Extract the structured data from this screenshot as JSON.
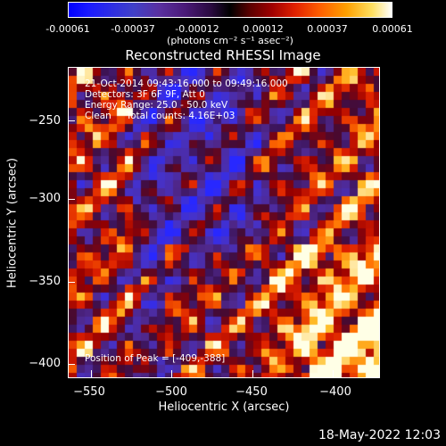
{
  "colorbar": {
    "ticks": [
      "-0.00061",
      "-0.00037",
      "-0.00012",
      "0.00012",
      "0.00037",
      "0.00061"
    ],
    "unit": "(photons cm⁻² s⁻¹ asec⁻²)"
  },
  "chart_data": {
    "type": "heatmap",
    "title": "Reconstructed RHESSI Image",
    "xlabel": "Heliocentric X (arcsec)",
    "ylabel": "Heliocentric Y (arcsec)",
    "xlim": [
      -565,
      -370
    ],
    "ylim": [
      -410,
      -220
    ],
    "xticks": [
      "−550",
      "−500",
      "−450",
      "−400"
    ],
    "yticks": [
      "−250",
      "−300",
      "−350",
      "−400"
    ],
    "colorbar_range": [
      -0.00061,
      0.00061
    ],
    "peak": [
      -409,
      -388
    ]
  },
  "info": {
    "line1": "21-Oct-2014 09:43:16.000 to 09:49:16.000",
    "line2": "Detectors: 3F 6F 9F, Att 0",
    "line3": "Energy Range: 25.0 - 50.0 keV",
    "line4": "Clean     Total counts: 4.16E+03",
    "peak_label": "Position of Peak = [-409,-388]"
  },
  "timestamp": "18-May-2022 12:03"
}
